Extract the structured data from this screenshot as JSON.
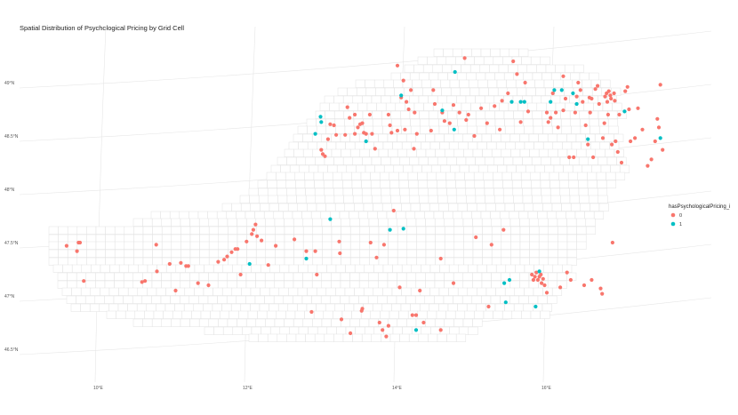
{
  "chart_data": {
    "type": "scatter",
    "title": "Spatial Distribution of Psychological Pricing by Grid Cell",
    "xlabel": "",
    "ylabel": "",
    "x_tick_labels": [
      "10°E",
      "12°E",
      "14°E",
      "16°E"
    ],
    "x_ticks": [
      10,
      12,
      14,
      16
    ],
    "y_tick_labels": [
      "46.5°N",
      "47°N",
      "47.5°N",
      "48°N",
      "48.5°N",
      "49°N"
    ],
    "y_ticks": [
      46.5,
      47,
      47.5,
      48,
      48.5,
      49
    ],
    "xlim": [
      9.3,
      17.5
    ],
    "ylim": [
      46.25,
      49.35
    ],
    "grid": true,
    "legend": {
      "title": "hasPsychologicalPricing_i",
      "position": "right",
      "entries": [
        {
          "label": "0",
          "color": "#F8766D"
        },
        {
          "label": "1",
          "color": "#00BFC4"
        }
      ]
    },
    "series": [
      {
        "name": "0",
        "color": "#F8766D",
        "points": [
          [
            9.57,
            47.47
          ],
          [
            9.73,
            47.5
          ],
          [
            9.71,
            47.42
          ],
          [
            9.75,
            47.5
          ],
          [
            9.8,
            47.14
          ],
          [
            10.58,
            47.13
          ],
          [
            10.62,
            47.14
          ],
          [
            10.77,
            47.48
          ],
          [
            10.78,
            47.23
          ],
          [
            10.95,
            47.3
          ],
          [
            11.03,
            47.05
          ],
          [
            11.1,
            47.31
          ],
          [
            11.17,
            47.28
          ],
          [
            11.2,
            47.28
          ],
          [
            11.33,
            47.12
          ],
          [
            11.47,
            47.1
          ],
          [
            11.6,
            47.32
          ],
          [
            11.68,
            47.34
          ],
          [
            11.72,
            47.37
          ],
          [
            11.78,
            47.41
          ],
          [
            11.83,
            47.44
          ],
          [
            11.86,
            47.44
          ],
          [
            11.9,
            47.2
          ],
          [
            11.98,
            47.51
          ],
          [
            12.05,
            47.58
          ],
          [
            12.07,
            47.62
          ],
          [
            12.1,
            47.67
          ],
          [
            12.12,
            47.56
          ],
          [
            12.18,
            47.52
          ],
          [
            12.27,
            47.29
          ],
          [
            12.37,
            47.47
          ],
          [
            12.62,
            47.53
          ],
          [
            12.78,
            47.42
          ],
          [
            12.85,
            46.85
          ],
          [
            12.9,
            47.42
          ],
          [
            12.92,
            47.2
          ],
          [
            12.98,
            48.37
          ],
          [
            13.0,
            48.33
          ],
          [
            13.03,
            48.31
          ],
          [
            13.07,
            48.47
          ],
          [
            13.1,
            48.61
          ],
          [
            13.15,
            48.6
          ],
          [
            13.18,
            48.51
          ],
          [
            13.22,
            47.51
          ],
          [
            13.23,
            47.4
          ],
          [
            13.25,
            46.78
          ],
          [
            13.3,
            48.51
          ],
          [
            13.33,
            48.77
          ],
          [
            13.36,
            48.67
          ],
          [
            13.37,
            46.65
          ],
          [
            13.43,
            48.52
          ],
          [
            13.43,
            48.7
          ],
          [
            13.47,
            48.58
          ],
          [
            13.5,
            48.61
          ],
          [
            13.52,
            46.86
          ],
          [
            13.53,
            46.88
          ],
          [
            13.53,
            48.62
          ],
          [
            13.55,
            48.53
          ],
          [
            13.58,
            48.52
          ],
          [
            13.63,
            48.7
          ],
          [
            13.64,
            47.5
          ],
          [
            13.66,
            48.52
          ],
          [
            13.7,
            48.38
          ],
          [
            13.72,
            47.36
          ],
          [
            13.76,
            46.75
          ],
          [
            13.8,
            46.68
          ],
          [
            13.82,
            47.48
          ],
          [
            13.85,
            46.62
          ],
          [
            13.88,
            46.72
          ],
          [
            13.88,
            48.7
          ],
          [
            13.9,
            48.6
          ],
          [
            13.92,
            48.53
          ],
          [
            13.95,
            47.8
          ],
          [
            14.0,
            48.55
          ],
          [
            14.0,
            49.16
          ],
          [
            14.03,
            47.08
          ],
          [
            14.05,
            48.86
          ],
          [
            14.08,
            49.02
          ],
          [
            14.1,
            48.56
          ],
          [
            14.12,
            48.82
          ],
          [
            14.15,
            48.75
          ],
          [
            14.18,
            48.93
          ],
          [
            14.2,
            46.82
          ],
          [
            14.22,
            48.38
          ],
          [
            14.23,
            48.72
          ],
          [
            14.25,
            46.82
          ],
          [
            14.26,
            48.52
          ],
          [
            14.3,
            47.05
          ],
          [
            14.35,
            46.75
          ],
          [
            14.45,
            48.55
          ],
          [
            14.48,
            48.93
          ],
          [
            14.5,
            48.8
          ],
          [
            14.58,
            47.35
          ],
          [
            14.58,
            46.68
          ],
          [
            14.6,
            48.72
          ],
          [
            14.63,
            48.64
          ],
          [
            14.7,
            48.62
          ],
          [
            14.75,
            47.12
          ],
          [
            14.75,
            48.79
          ],
          [
            14.83,
            48.72
          ],
          [
            14.9,
            49.23
          ],
          [
            14.92,
            48.65
          ],
          [
            14.95,
            48.7
          ],
          [
            15.03,
            48.5
          ],
          [
            15.05,
            47.55
          ],
          [
            15.12,
            48.76
          ],
          [
            15.2,
            48.62
          ],
          [
            15.22,
            46.9
          ],
          [
            15.26,
            47.48
          ],
          [
            15.3,
            48.78
          ],
          [
            15.37,
            48.56
          ],
          [
            15.4,
            48.83
          ],
          [
            15.42,
            47.62
          ],
          [
            15.48,
            48.9
          ],
          [
            15.55,
            49.2
          ],
          [
            15.6,
            49.08
          ],
          [
            15.65,
            48.63
          ],
          [
            15.71,
            49.0
          ],
          [
            15.75,
            48.73
          ],
          [
            15.8,
            47.2
          ],
          [
            15.82,
            47.15
          ],
          [
            15.84,
            47.18
          ],
          [
            15.86,
            47.22
          ],
          [
            15.88,
            47.15
          ],
          [
            15.9,
            47.18
          ],
          [
            15.92,
            47.2
          ],
          [
            15.93,
            47.12
          ],
          [
            15.95,
            47.16
          ],
          [
            15.97,
            47.1
          ],
          [
            16.0,
            48.72
          ],
          [
            16.0,
            47.03
          ],
          [
            16.02,
            48.63
          ],
          [
            16.05,
            48.67
          ],
          [
            16.08,
            48.9
          ],
          [
            16.12,
            48.72
          ],
          [
            16.15,
            48.58
          ],
          [
            16.18,
            47.08
          ],
          [
            16.22,
            49.06
          ],
          [
            16.22,
            48.74
          ],
          [
            16.25,
            48.85
          ],
          [
            16.27,
            47.22
          ],
          [
            16.3,
            48.3
          ],
          [
            16.32,
            47.15
          ],
          [
            16.36,
            48.3
          ],
          [
            16.38,
            48.72
          ],
          [
            16.4,
            48.87
          ],
          [
            16.42,
            49.0
          ],
          [
            16.45,
            48.93
          ],
          [
            16.48,
            48.82
          ],
          [
            16.5,
            47.1
          ],
          [
            16.52,
            48.6
          ],
          [
            16.55,
            48.42
          ],
          [
            16.57,
            48.86
          ],
          [
            16.58,
            48.72
          ],
          [
            16.6,
            48.85
          ],
          [
            16.6,
            47.15
          ],
          [
            16.62,
            48.3
          ],
          [
            16.65,
            48.94
          ],
          [
            16.68,
            48.97
          ],
          [
            16.7,
            48.8
          ],
          [
            16.72,
            47.07
          ],
          [
            16.74,
            47.02
          ],
          [
            16.75,
            48.48
          ],
          [
            16.77,
            48.62
          ],
          [
            16.78,
            48.87
          ],
          [
            16.8,
            48.9
          ],
          [
            16.81,
            48.82
          ],
          [
            16.82,
            48.7
          ],
          [
            16.83,
            48.92
          ],
          [
            16.85,
            48.88
          ],
          [
            16.86,
            48.85
          ],
          [
            16.87,
            48.42
          ],
          [
            16.88,
            47.5
          ],
          [
            16.9,
            48.9
          ],
          [
            16.91,
            48.83
          ],
          [
            16.92,
            48.45
          ],
          [
            16.95,
            48.35
          ],
          [
            16.97,
            48.7
          ],
          [
            17.0,
            48.25
          ],
          [
            17.05,
            48.92
          ],
          [
            17.08,
            48.96
          ],
          [
            17.1,
            48.75
          ],
          [
            17.12,
            48.45
          ],
          [
            17.18,
            48.48
          ],
          [
            17.22,
            48.76
          ],
          [
            17.28,
            48.56
          ],
          [
            17.35,
            48.22
          ],
          [
            17.4,
            48.28
          ],
          [
            17.45,
            48.45
          ],
          [
            17.48,
            48.66
          ],
          [
            17.5,
            48.58
          ],
          [
            17.52,
            48.98
          ],
          [
            17.55,
            48.37
          ]
        ]
      },
      {
        "name": "1",
        "color": "#00BFC4",
        "points": [
          [
            12.02,
            47.3
          ],
          [
            12.78,
            47.35
          ],
          [
            12.9,
            48.52
          ],
          [
            12.97,
            48.68
          ],
          [
            12.98,
            48.63
          ],
          [
            13.1,
            47.72
          ],
          [
            13.58,
            48.45
          ],
          [
            13.9,
            47.62
          ],
          [
            14.05,
            48.88
          ],
          [
            14.08,
            47.63
          ],
          [
            14.25,
            46.68
          ],
          [
            14.6,
            48.74
          ],
          [
            14.76,
            48.56
          ],
          [
            14.77,
            49.1
          ],
          [
            15.43,
            47.12
          ],
          [
            15.45,
            46.94
          ],
          [
            15.5,
            47.15
          ],
          [
            15.53,
            48.82
          ],
          [
            15.65,
            48.82
          ],
          [
            15.7,
            48.82
          ],
          [
            15.85,
            46.9
          ],
          [
            15.9,
            47.23
          ],
          [
            16.05,
            48.82
          ],
          [
            16.1,
            48.93
          ],
          [
            16.2,
            48.93
          ],
          [
            16.35,
            48.9
          ],
          [
            16.4,
            48.8
          ],
          [
            16.55,
            48.47
          ],
          [
            17.04,
            48.73
          ],
          [
            17.52,
            48.48
          ]
        ]
      }
    ]
  }
}
